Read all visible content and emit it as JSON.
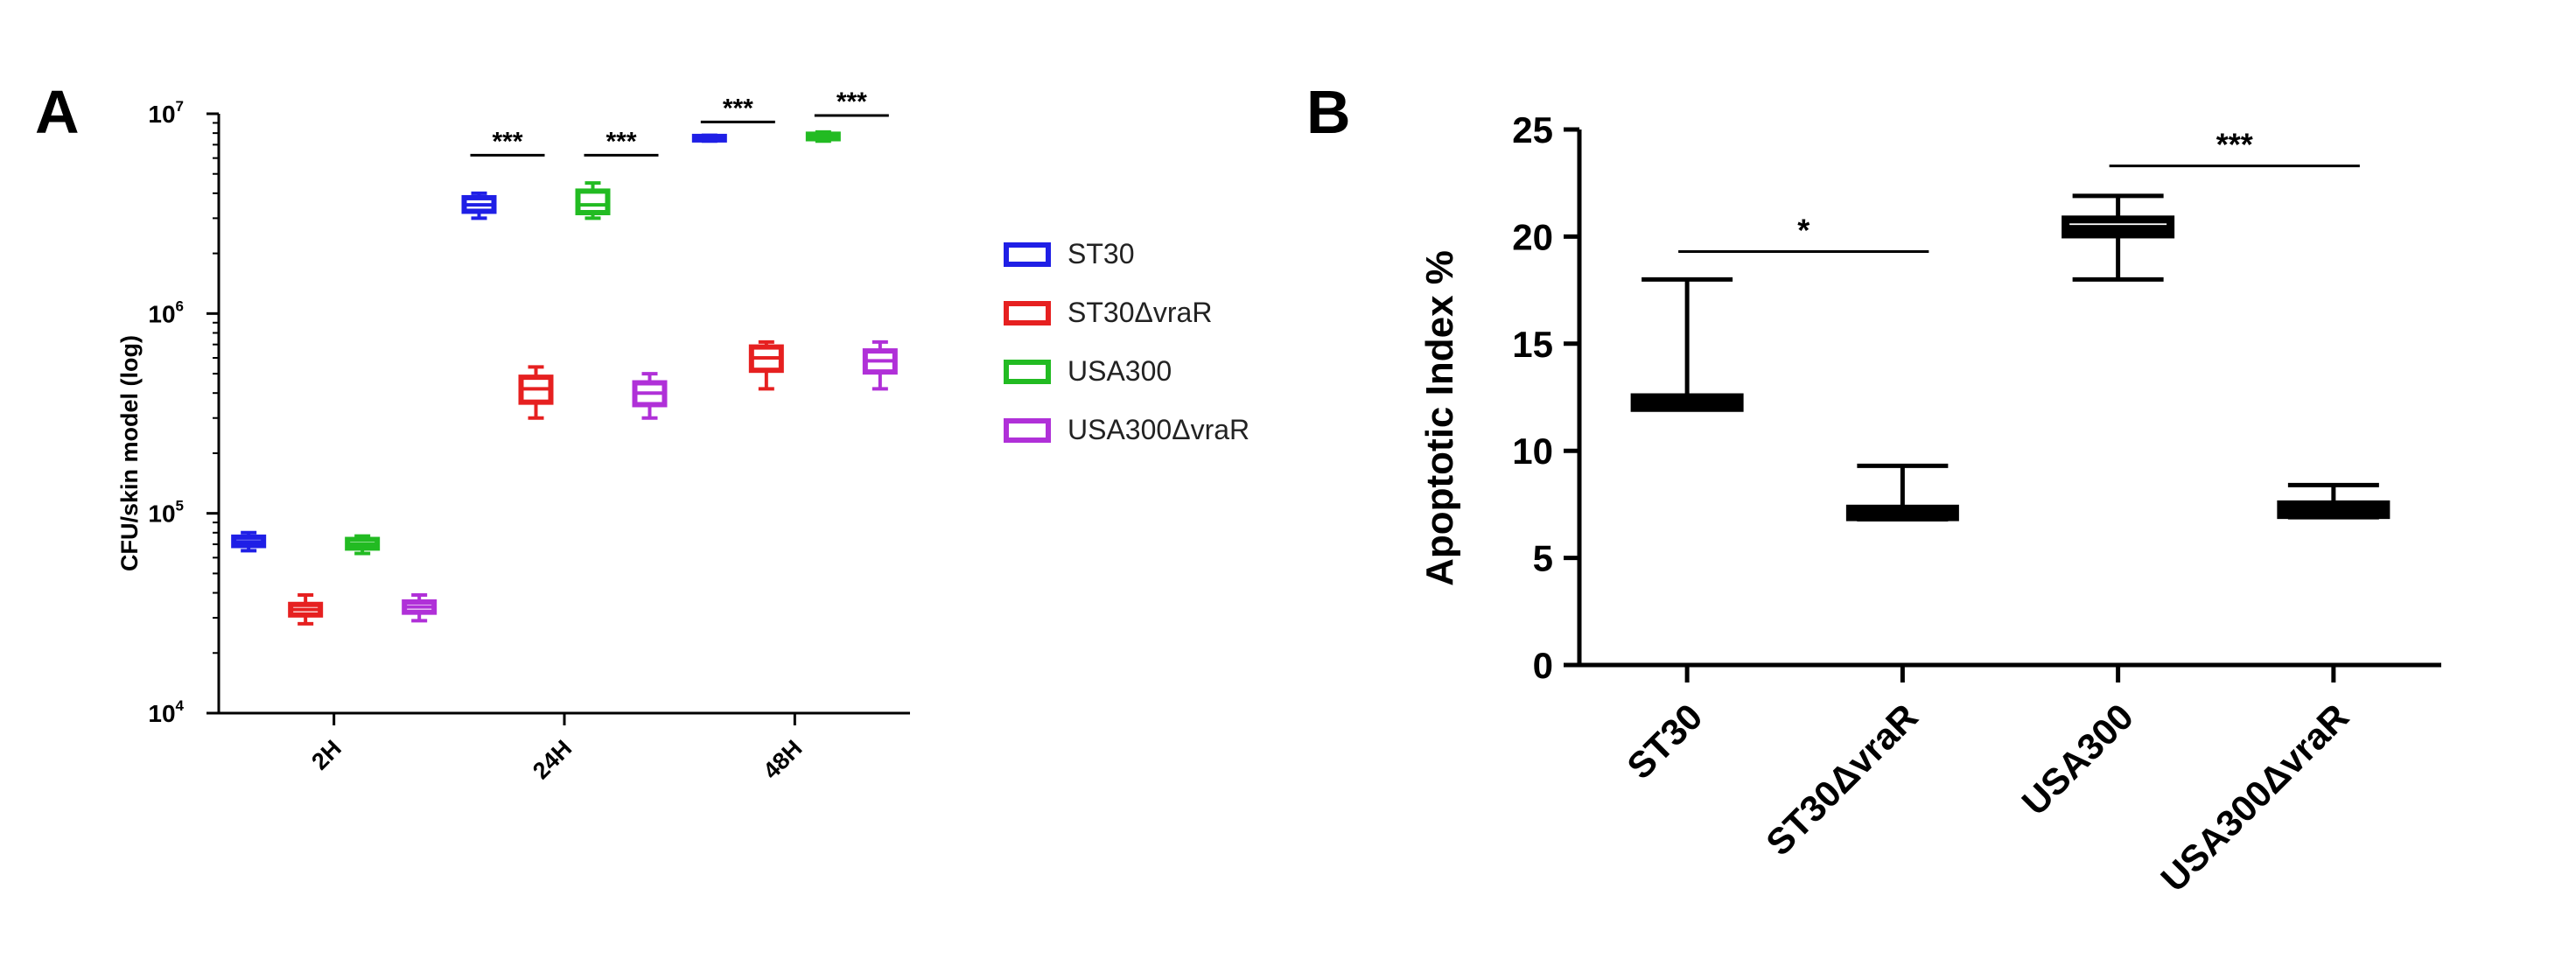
{
  "colors": {
    "ST30": "#1f1fe6",
    "ST30ΔvraR": "#e62020",
    "USA300": "#22bb22",
    "USA300ΔvraR": "#b030d8",
    "axis": "#000000"
  },
  "chart_data": [
    {
      "panel": "A",
      "type": "box",
      "title": "",
      "xlabel": "",
      "ylabel": "CFU/skin model (log)",
      "yscale": "log",
      "ylim": [
        10000,
        10000000
      ],
      "yticks": [
        {
          "value": 10000,
          "base": "10",
          "exp": "4"
        },
        {
          "value": 100000,
          "base": "10",
          "exp": "5"
        },
        {
          "value": 1000000,
          "base": "10",
          "exp": "6"
        },
        {
          "value": 10000000,
          "base": "10",
          "exp": "7"
        }
      ],
      "categories": [
        "2H",
        "24H",
        "48H"
      ],
      "legend": {
        "position": "right"
      },
      "series": [
        {
          "name": "ST30",
          "boxes": [
            {
              "min": 65000,
              "q1": 69000,
              "median": 72000,
              "q3": 76000,
              "max": 80000
            },
            {
              "min": 3000000,
              "q1": 3250000,
              "median": 3500000,
              "q3": 3800000,
              "max": 4000000
            },
            {
              "min": 7300000,
              "q1": 7400000,
              "median": 7500000,
              "q3": 7700000,
              "max": 7800000
            }
          ]
        },
        {
          "name": "ST30ΔvraR",
          "boxes": [
            {
              "min": 28000,
              "q1": 31000,
              "median": 33000,
              "q3": 35000,
              "max": 39000
            },
            {
              "min": 300000,
              "q1": 360000,
              "median": 420000,
              "q3": 480000,
              "max": 540000
            },
            {
              "min": 420000,
              "q1": 520000,
              "median": 600000,
              "q3": 680000,
              "max": 720000
            }
          ]
        },
        {
          "name": "USA300",
          "boxes": [
            {
              "min": 63000,
              "q1": 67000,
              "median": 70000,
              "q3": 74000,
              "max": 77000
            },
            {
              "min": 3000000,
              "q1": 3200000,
              "median": 3500000,
              "q3": 4100000,
              "max": 4500000
            },
            {
              "min": 7300000,
              "q1": 7500000,
              "median": 7700000,
              "q3": 7900000,
              "max": 8100000
            }
          ]
        },
        {
          "name": "USA300ΔvraR",
          "boxes": [
            {
              "min": 29000,
              "q1": 32000,
              "median": 34000,
              "q3": 36000,
              "max": 39000
            },
            {
              "min": 300000,
              "q1": 350000,
              "median": 400000,
              "q3": 450000,
              "max": 500000
            },
            {
              "min": 420000,
              "q1": 510000,
              "median": 580000,
              "q3": 650000,
              "max": 720000
            }
          ]
        }
      ],
      "significance": [
        {
          "label": "***",
          "from": {
            "series": 0,
            "category": 1
          },
          "to": {
            "series": 1,
            "category": 1
          },
          "y": 6200000
        },
        {
          "label": "***",
          "from": {
            "series": 2,
            "category": 1
          },
          "to": {
            "series": 3,
            "category": 1
          },
          "y": 6200000
        },
        {
          "label": "***",
          "from": {
            "series": 0,
            "category": 2
          },
          "to": {
            "series": 1,
            "category": 2
          },
          "y": 9100000
        },
        {
          "label": "***",
          "from": {
            "series": 2,
            "category": 2
          },
          "to": {
            "series": 3,
            "category": 2
          },
          "y": 9800000
        }
      ]
    },
    {
      "panel": "B",
      "type": "box",
      "title": "",
      "xlabel": "",
      "ylabel": "Apoptotic Index  %",
      "ylim": [
        0,
        25
      ],
      "yticks": [
        0,
        5,
        10,
        15,
        20,
        25
      ],
      "categories": [
        "ST30",
        "ST30ΔvraR",
        "USA300",
        "USA300ΔvraR"
      ],
      "boxes": [
        {
          "min": 12.0,
          "q1": 12.0,
          "median": 12.3,
          "q3": 12.5,
          "max": 18.0
        },
        {
          "min": 6.8,
          "q1": 6.9,
          "median": 7.0,
          "q3": 7.3,
          "max": 9.3
        },
        {
          "min": 18.0,
          "q1": 20.1,
          "median": 20.4,
          "q3": 20.8,
          "max": 21.9
        },
        {
          "min": 6.9,
          "q1": 7.0,
          "median": 7.2,
          "q3": 7.5,
          "max": 8.4
        }
      ],
      "significance": [
        {
          "label": "*",
          "from": 0,
          "to": 1,
          "y": 19.3
        },
        {
          "label": "***",
          "from": 2,
          "to": 3,
          "y": 23.3
        }
      ]
    }
  ]
}
